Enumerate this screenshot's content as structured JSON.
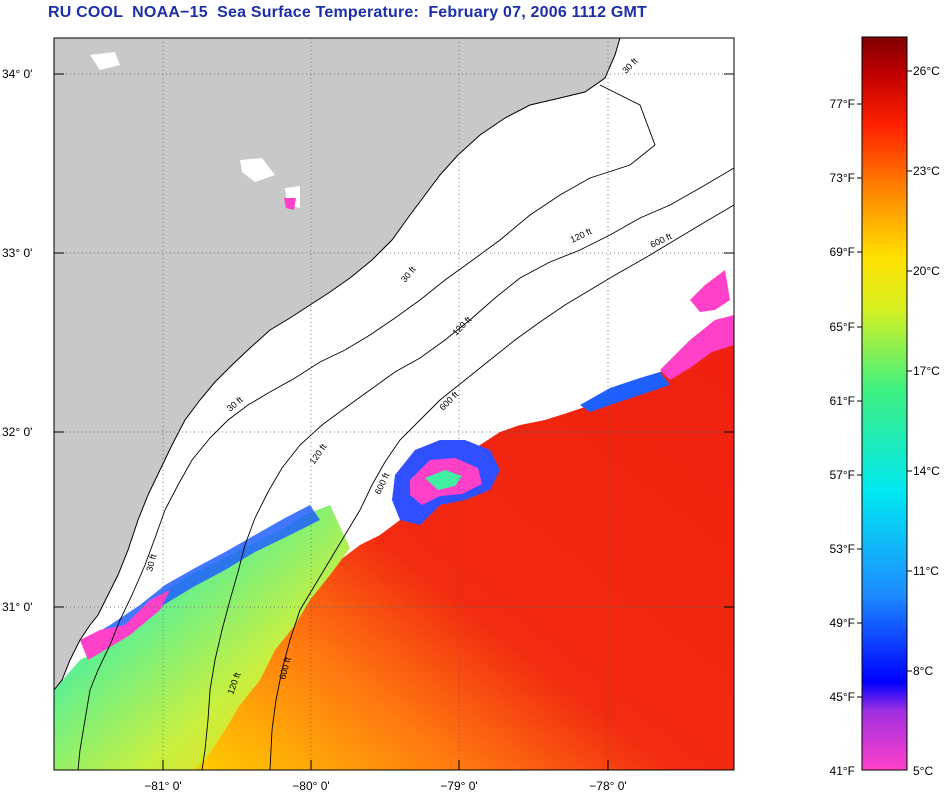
{
  "title": "RU COOL  NOAA−15  Sea Surface Temperature:  February 07, 2006 1112 GMT",
  "map": {
    "lat_labels": [
      "34° 0'",
      "33° 0'",
      "32° 0'",
      "31° 0'"
    ],
    "lon_labels": [
      "−81° 0'",
      "−80° 0'",
      "−79° 0'",
      "−78° 0'"
    ],
    "contour_labels": [
      "30 ft",
      "120 ft",
      "600 ft",
      "30 ft",
      "120 ft",
      "600 ft",
      "30 ft",
      "120 ft",
      "600 ft",
      "30 ft",
      "120 ft",
      "600 ft"
    ]
  },
  "colorbar": {
    "fahrenheit_labels": [
      "77°F",
      "73°F",
      "69°F",
      "65°F",
      "61°F",
      "57°F",
      "53°F",
      "49°F",
      "45°F",
      "41°F"
    ],
    "celsius_labels": [
      "26°C",
      "23°C",
      "20°C",
      "17°C",
      "14°C",
      "11°C",
      "8°C",
      "5°C"
    ]
  },
  "colors": {
    "title": "#1c2fa8",
    "land": "#c8c8c8",
    "cloud": "#ffffff",
    "warm": "#f02810",
    "cold": "#ff30c8"
  }
}
